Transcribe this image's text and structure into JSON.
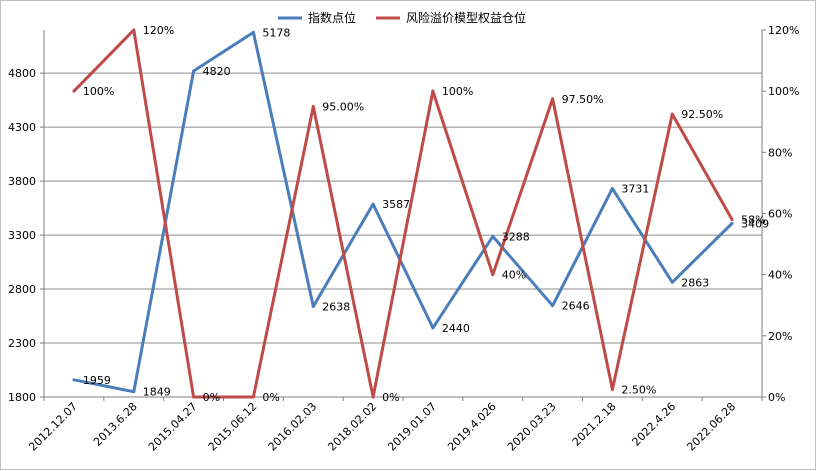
{
  "chart_data": {
    "type": "line",
    "categories": [
      "2012.12.07",
      "2013.6.28",
      "2015.04.27",
      "2015.06.12",
      "2016.02.03",
      "2018.02.02",
      "2019.01.07",
      "2019.4.026",
      "2020.03.23",
      "2021.2.18",
      "2022.4.26",
      "2022.06.28"
    ],
    "series": [
      {
        "name": "指数点位",
        "axis": "left",
        "color": "#4a7ebb",
        "values": [
          1959,
          1849,
          4820,
          5178,
          2638,
          3587,
          2440,
          3288,
          2646,
          3731,
          2863,
          3409
        ],
        "labels": [
          "1959",
          "1849",
          "4820",
          "5178",
          "2638",
          "3587",
          "2440",
          "3288",
          "2646",
          "3731",
          "2863",
          "3409"
        ]
      },
      {
        "name": "风险溢价模型权益仓位",
        "axis": "right",
        "color": "#be4b48",
        "values": [
          100,
          120,
          0,
          0,
          95,
          0,
          100,
          40,
          97.5,
          2.5,
          92.5,
          58
        ],
        "labels": [
          "100%",
          "120%",
          "0%",
          "0%",
          "95.00%",
          "0%",
          "100%",
          "40%",
          "97.50%",
          "2.50%",
          "92.50%",
          "58%"
        ]
      }
    ],
    "y_left": {
      "range": [
        1800,
        5200
      ],
      "ticks": [
        "1800",
        "2300",
        "2800",
        "3300",
        "3800",
        "4300",
        "4800"
      ]
    },
    "y_right": {
      "range": [
        0,
        120
      ],
      "ticks": [
        "0%",
        "20%",
        "40%",
        "60%",
        "80%",
        "100%",
        "120%"
      ]
    },
    "grid": true,
    "legend_position": "top"
  }
}
